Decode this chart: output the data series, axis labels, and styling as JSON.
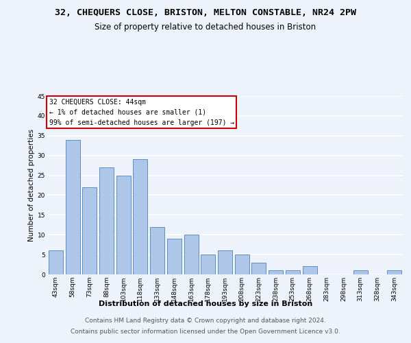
{
  "title1": "32, CHEQUERS CLOSE, BRISTON, MELTON CONSTABLE, NR24 2PW",
  "title2": "Size of property relative to detached houses in Briston",
  "xlabel": "Distribution of detached houses by size in Briston",
  "ylabel": "Number of detached properties",
  "categories": [
    "43sqm",
    "58sqm",
    "73sqm",
    "88sqm",
    "103sqm",
    "118sqm",
    "133sqm",
    "148sqm",
    "163sqm",
    "178sqm",
    "193sqm",
    "208sqm",
    "223sqm",
    "238sqm",
    "253sqm",
    "268sqm",
    "283sqm",
    "298sqm",
    "313sqm",
    "328sqm",
    "343sqm"
  ],
  "values": [
    6,
    34,
    22,
    27,
    25,
    29,
    12,
    9,
    10,
    5,
    6,
    5,
    3,
    1,
    1,
    2,
    0,
    0,
    1,
    0,
    1
  ],
  "bar_color": "#aec6e8",
  "bar_edge_color": "#5b8dc0",
  "annotation_box_text": "32 CHEQUERS CLOSE: 44sqm\n← 1% of detached houses are smaller (1)\n99% of semi-detached houses are larger (197) →",
  "annotation_box_color": "#ffffff",
  "annotation_box_edge_color": "#cc0000",
  "ylim": [
    0,
    45
  ],
  "yticks": [
    0,
    5,
    10,
    15,
    20,
    25,
    30,
    35,
    40,
    45
  ],
  "footer1": "Contains HM Land Registry data © Crown copyright and database right 2024.",
  "footer2": "Contains public sector information licensed under the Open Government Licence v3.0.",
  "bg_color": "#eef3fb",
  "plot_bg_color": "#eef3fb",
  "grid_color": "#ffffff",
  "title1_fontsize": 9.5,
  "title2_fontsize": 8.5,
  "axis_label_fontsize": 7.5,
  "tick_fontsize": 6.5,
  "annotation_fontsize": 7.0,
  "footer_fontsize": 6.5
}
